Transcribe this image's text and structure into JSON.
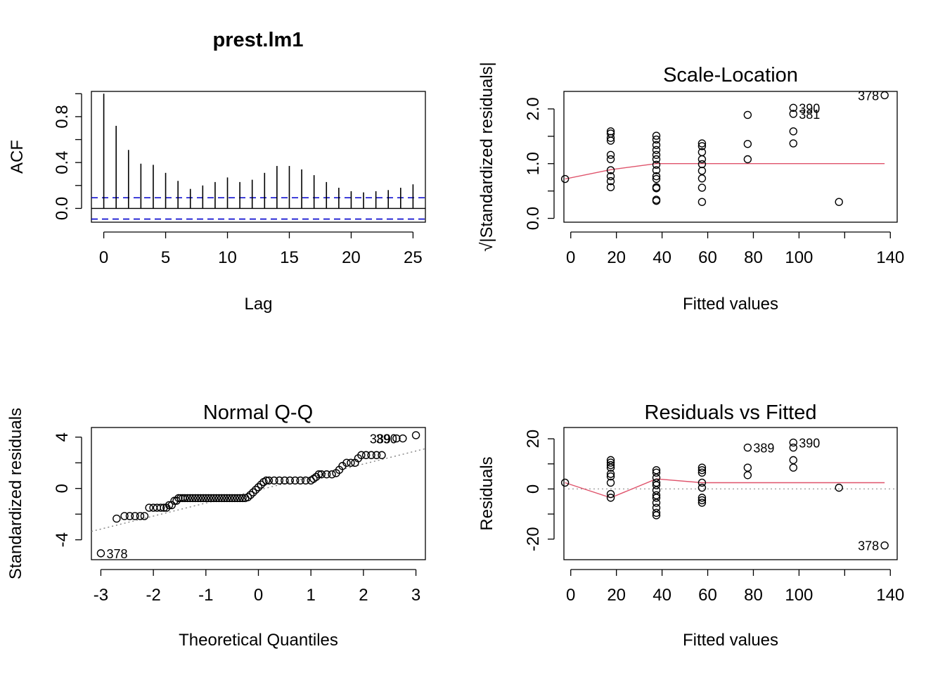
{
  "chart_data": [
    {
      "type": "bar",
      "title": "prest.lm1",
      "xlabel": "Lag",
      "ylabel": "ACF",
      "xlim": [
        -1,
        26
      ],
      "ylim": [
        -0.12,
        1.02
      ],
      "xticks": [
        0,
        5,
        10,
        15,
        20,
        25
      ],
      "yticks": [
        0.0,
        0.4,
        0.8
      ],
      "ytick_labels": [
        "0.0",
        "0.4",
        "0.8"
      ],
      "ytick_minor": [
        0.2,
        0.6,
        1.0
      ],
      "lags": [
        0,
        1,
        2,
        3,
        4,
        5,
        6,
        7,
        8,
        9,
        10,
        11,
        12,
        13,
        14,
        15,
        16,
        17,
        18,
        19,
        20,
        21,
        22,
        23,
        24,
        25
      ],
      "values": [
        1.0,
        0.72,
        0.51,
        0.39,
        0.38,
        0.31,
        0.24,
        0.17,
        0.2,
        0.23,
        0.27,
        0.23,
        0.25,
        0.31,
        0.37,
        0.37,
        0.34,
        0.29,
        0.23,
        0.18,
        0.15,
        0.14,
        0.15,
        0.16,
        0.18,
        0.21
      ],
      "conf_limit": 0.093,
      "conf_color": "#0000CD"
    },
    {
      "type": "scatter",
      "title": "Scale-Location",
      "xlabel": "Fitted values",
      "ylabel": "√|Standardized residuals|",
      "xlim": [
        -3,
        143
      ],
      "ylim": [
        -0.07,
        2.32
      ],
      "xticks": [
        0,
        20,
        40,
        60,
        80,
        100,
        120,
        140
      ],
      "xtick_labels": [
        "0",
        "20",
        "40",
        "60",
        "80",
        "100",
        "",
        "140"
      ],
      "yticks": [
        0.0,
        1.0,
        2.0
      ],
      "ytick_labels": [
        "0.0",
        "1.0",
        "2.0"
      ],
      "ytick_minor": [
        0.5,
        1.5
      ],
      "points": [
        [
          -2.5,
          0.72
        ],
        [
          17.5,
          0.57
        ],
        [
          17.5,
          0.68
        ],
        [
          17.5,
          0.77
        ],
        [
          17.5,
          0.88
        ],
        [
          17.5,
          1.08
        ],
        [
          17.5,
          1.16
        ],
        [
          17.5,
          1.42
        ],
        [
          17.5,
          1.47
        ],
        [
          17.5,
          1.55
        ],
        [
          17.5,
          1.59
        ],
        [
          37.5,
          0.32
        ],
        [
          37.5,
          0.34
        ],
        [
          37.5,
          0.55
        ],
        [
          37.5,
          0.57
        ],
        [
          37.5,
          0.72
        ],
        [
          37.5,
          0.77
        ],
        [
          37.5,
          0.88
        ],
        [
          37.5,
          0.98
        ],
        [
          37.5,
          1.08
        ],
        [
          37.5,
          1.16
        ],
        [
          37.5,
          1.25
        ],
        [
          37.5,
          1.34
        ],
        [
          37.5,
          1.44
        ],
        [
          37.5,
          1.51
        ],
        [
          57.5,
          0.3
        ],
        [
          57.5,
          0.56
        ],
        [
          57.5,
          0.73
        ],
        [
          57.5,
          0.87
        ],
        [
          57.5,
          0.99
        ],
        [
          57.5,
          1.08
        ],
        [
          57.5,
          1.21
        ],
        [
          57.5,
          1.32
        ],
        [
          57.5,
          1.37
        ],
        [
          77.5,
          1.08
        ],
        [
          77.5,
          1.36
        ],
        [
          77.5,
          1.89
        ],
        [
          97.5,
          1.37
        ],
        [
          97.5,
          1.59
        ],
        [
          97.5,
          1.91
        ],
        [
          97.5,
          2.02
        ],
        [
          117.5,
          0.3
        ],
        [
          137.5,
          2.25
        ]
      ],
      "smooth": [
        [
          -2.5,
          0.72
        ],
        [
          17.5,
          0.89
        ],
        [
          37.5,
          1.0
        ],
        [
          57.5,
          1.0
        ],
        [
          77.5,
          1.0
        ],
        [
          97.5,
          1.0
        ],
        [
          117.5,
          1.0
        ],
        [
          137.5,
          1.0
        ]
      ],
      "smooth_color": "#DF536B",
      "point_labels": [
        {
          "text": "390",
          "x": 97.5,
          "y": 2.02,
          "side": "right"
        },
        {
          "text": "381",
          "x": 97.5,
          "y": 1.91,
          "side": "right"
        },
        {
          "text": "378",
          "x": 137.5,
          "y": 2.25,
          "side": "left"
        }
      ]
    },
    {
      "type": "scatter",
      "title": "Normal Q-Q",
      "xlabel": "Theoretical Quantiles",
      "ylabel": "Standardized residuals",
      "xlim": [
        -3.18,
        3.18
      ],
      "ylim": [
        -5.55,
        4.75
      ],
      "xticks": [
        -3,
        -2,
        -1,
        0,
        1,
        2,
        3
      ],
      "yticks": [
        -4,
        0,
        4
      ],
      "ytick_labels": [
        "-4",
        "0",
        "4"
      ],
      "ytick_minor": [
        -2,
        2
      ],
      "points": [
        [
          -3.0,
          -5.05
        ],
        [
          -2.7,
          -2.35
        ],
        [
          -2.55,
          -2.15
        ],
        [
          -2.45,
          -2.15
        ],
        [
          -2.35,
          -2.15
        ],
        [
          -2.25,
          -2.15
        ],
        [
          -2.17,
          -2.15
        ],
        [
          -2.08,
          -1.5
        ],
        [
          -2.0,
          -1.5
        ],
        [
          -1.93,
          -1.5
        ],
        [
          -1.86,
          -1.5
        ],
        [
          -1.8,
          -1.5
        ],
        [
          -1.75,
          -1.5
        ],
        [
          -1.7,
          -1.3
        ],
        [
          -1.65,
          -1.3
        ],
        [
          -1.6,
          -0.96
        ],
        [
          -1.56,
          -0.96
        ],
        [
          -1.52,
          -0.75
        ],
        [
          -1.48,
          -0.75
        ],
        [
          -1.44,
          -0.75
        ],
        [
          -1.4,
          -0.75
        ],
        [
          -1.35,
          -0.75
        ],
        [
          -1.3,
          -0.75
        ],
        [
          -1.25,
          -0.75
        ],
        [
          -1.2,
          -0.75
        ],
        [
          -1.15,
          -0.75
        ],
        [
          -1.1,
          -0.75
        ],
        [
          -1.05,
          -0.75
        ],
        [
          -1.0,
          -0.75
        ],
        [
          -0.95,
          -0.75
        ],
        [
          -0.9,
          -0.75
        ],
        [
          -0.85,
          -0.75
        ],
        [
          -0.8,
          -0.75
        ],
        [
          -0.75,
          -0.75
        ],
        [
          -0.7,
          -0.75
        ],
        [
          -0.65,
          -0.75
        ],
        [
          -0.6,
          -0.75
        ],
        [
          -0.55,
          -0.75
        ],
        [
          -0.5,
          -0.75
        ],
        [
          -0.45,
          -0.75
        ],
        [
          -0.4,
          -0.75
        ],
        [
          -0.35,
          -0.75
        ],
        [
          -0.3,
          -0.75
        ],
        [
          -0.25,
          -0.75
        ],
        [
          -0.2,
          -0.68
        ],
        [
          -0.15,
          -0.5
        ],
        [
          -0.1,
          -0.3
        ],
        [
          -0.05,
          -0.1
        ],
        [
          0.0,
          0.1
        ],
        [
          0.05,
          0.3
        ],
        [
          0.1,
          0.5
        ],
        [
          0.15,
          0.62
        ],
        [
          0.2,
          0.62
        ],
        [
          0.3,
          0.62
        ],
        [
          0.4,
          0.62
        ],
        [
          0.5,
          0.62
        ],
        [
          0.6,
          0.62
        ],
        [
          0.7,
          0.62
        ],
        [
          0.8,
          0.62
        ],
        [
          0.9,
          0.62
        ],
        [
          1.0,
          0.62
        ],
        [
          1.05,
          0.75
        ],
        [
          1.1,
          0.9
        ],
        [
          1.15,
          1.1
        ],
        [
          1.2,
          1.1
        ],
        [
          1.3,
          1.1
        ],
        [
          1.4,
          1.1
        ],
        [
          1.48,
          1.2
        ],
        [
          1.54,
          1.45
        ],
        [
          1.6,
          1.75
        ],
        [
          1.68,
          2.0
        ],
        [
          1.76,
          2.0
        ],
        [
          1.84,
          2.0
        ],
        [
          1.9,
          2.35
        ],
        [
          1.96,
          2.6
        ],
        [
          2.05,
          2.6
        ],
        [
          2.15,
          2.6
        ],
        [
          2.25,
          2.6
        ],
        [
          2.35,
          2.6
        ],
        [
          2.63,
          3.9
        ],
        [
          2.75,
          3.9
        ],
        [
          3.0,
          4.15
        ]
      ],
      "qqline": [
        [
          -3.18,
          -3.35
        ],
        [
          3.18,
          3.1
        ]
      ],
      "qqline_color": "#808080",
      "point_labels": [
        {
          "text": "378",
          "x": -3.0,
          "y": -5.05,
          "side": "right"
        },
        {
          "text": "389",
          "x": 2.63,
          "y": 3.9,
          "side": "left"
        },
        {
          "text": "390",
          "x": 2.75,
          "y": 3.9,
          "side": "left"
        }
      ]
    },
    {
      "type": "scatter",
      "title": "Residuals vs Fitted",
      "xlabel": "Fitted values",
      "ylabel": "Residuals",
      "xlim": [
        -3,
        143
      ],
      "ylim": [
        -28.2,
        24.5
      ],
      "xticks": [
        0,
        20,
        40,
        60,
        80,
        100,
        120,
        140
      ],
      "xtick_labels": [
        "0",
        "20",
        "40",
        "60",
        "80",
        "100",
        "",
        "140"
      ],
      "yticks": [
        -20,
        0,
        20
      ],
      "ytick_labels": [
        "-20",
        "0",
        "20"
      ],
      "ytick_minor": [
        -10,
        10
      ],
      "points": [
        [
          -2.5,
          2.5
        ],
        [
          17.5,
          -3.5
        ],
        [
          17.5,
          -2.0
        ],
        [
          17.5,
          2.5
        ],
        [
          17.5,
          5.0
        ],
        [
          17.5,
          6.0
        ],
        [
          17.5,
          8.5
        ],
        [
          17.5,
          9.5
        ],
        [
          17.5,
          10.5
        ],
        [
          17.5,
          11.5
        ],
        [
          37.5,
          -10.5
        ],
        [
          37.5,
          -9.5
        ],
        [
          37.5,
          -7.5
        ],
        [
          37.5,
          -5.5
        ],
        [
          37.5,
          -3.5
        ],
        [
          37.5,
          -2.5
        ],
        [
          37.5,
          -0.5
        ],
        [
          37.5,
          1.5
        ],
        [
          37.5,
          2.5
        ],
        [
          37.5,
          4.5
        ],
        [
          37.5,
          6.5
        ],
        [
          37.5,
          7.5
        ],
        [
          57.5,
          -5.5
        ],
        [
          57.5,
          -4.5
        ],
        [
          57.5,
          -3.5
        ],
        [
          57.5,
          0.5
        ],
        [
          57.5,
          2.5
        ],
        [
          57.5,
          6.5
        ],
        [
          57.5,
          7.5
        ],
        [
          57.5,
          8.5
        ],
        [
          77.5,
          5.5
        ],
        [
          77.5,
          8.5
        ],
        [
          77.5,
          16.5
        ],
        [
          97.5,
          8.5
        ],
        [
          97.5,
          11.5
        ],
        [
          97.5,
          16.5
        ],
        [
          97.5,
          18.5
        ],
        [
          117.5,
          0.5
        ],
        [
          137.5,
          -22.5
        ]
      ],
      "smooth": [
        [
          -2.5,
          2.5
        ],
        [
          17.5,
          -3.5
        ],
        [
          37.5,
          4.0
        ],
        [
          57.5,
          2.5
        ],
        [
          77.5,
          2.5
        ],
        [
          97.5,
          2.5
        ],
        [
          117.5,
          2.5
        ],
        [
          137.5,
          2.5
        ]
      ],
      "smooth_color": "#DF536B",
      "zero_line_color": "#9A9A9A",
      "point_labels": [
        {
          "text": "389",
          "x": 77.5,
          "y": 16.5,
          "side": "right"
        },
        {
          "text": "390",
          "x": 97.5,
          "y": 18.5,
          "side": "right"
        },
        {
          "text": "378",
          "x": 137.5,
          "y": -22.5,
          "side": "left"
        }
      ]
    }
  ]
}
